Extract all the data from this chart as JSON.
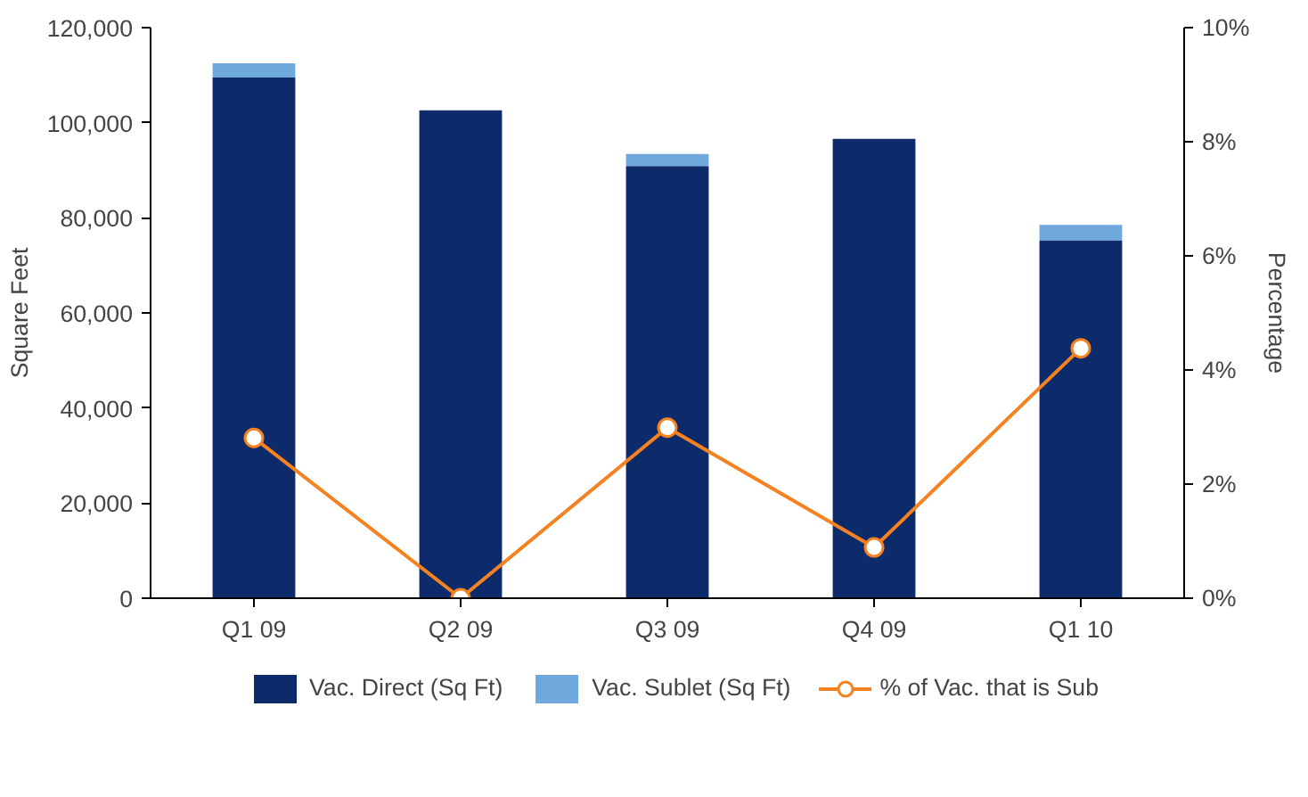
{
  "chart_data": {
    "type": "bar",
    "stacked": true,
    "categories": [
      "Q1 09",
      "Q2 09",
      "Q3 09",
      "Q4 09",
      "Q1 10"
    ],
    "series": [
      {
        "name": "Vac. Direct (Sq Ft)",
        "color": "#0d2b6b",
        "values": [
          109500,
          102600,
          90900,
          96600,
          75300
        ]
      },
      {
        "name": "Vac. Sublet (Sq Ft)",
        "color": "#6fa8dc",
        "values": [
          3000,
          0,
          2500,
          0,
          3200
        ]
      },
      {
        "name": "% of Vac. that is Sub",
        "color": "#f58220",
        "type": "line",
        "axis": "y2",
        "marker": "circle",
        "values": [
          2.81,
          0,
          2.99,
          0.89,
          4.38
        ]
      }
    ],
    "ylabel": "Square Feet",
    "y2label": "Percentage",
    "ylim": [
      0,
      120000
    ],
    "yticks": [
      {
        "value": 0,
        "label": "0"
      },
      {
        "value": 20000,
        "label": "20,000"
      },
      {
        "value": 40000,
        "label": "40,000"
      },
      {
        "value": 60000,
        "label": "60,000"
      },
      {
        "value": 80000,
        "label": "80,000"
      },
      {
        "value": 100000,
        "label": "100,000"
      },
      {
        "value": 120000,
        "label": "120,000"
      }
    ],
    "y2lim": [
      0,
      10
    ],
    "y2ticks": [
      {
        "value": 0,
        "label": "0%"
      },
      {
        "value": 2,
        "label": "2%"
      },
      {
        "value": 4,
        "label": "4%"
      },
      {
        "value": 6,
        "label": "6%"
      },
      {
        "value": 8,
        "label": "8%"
      },
      {
        "value": 10,
        "label": "10%"
      }
    ],
    "grid": false,
    "legend": "bottom"
  }
}
